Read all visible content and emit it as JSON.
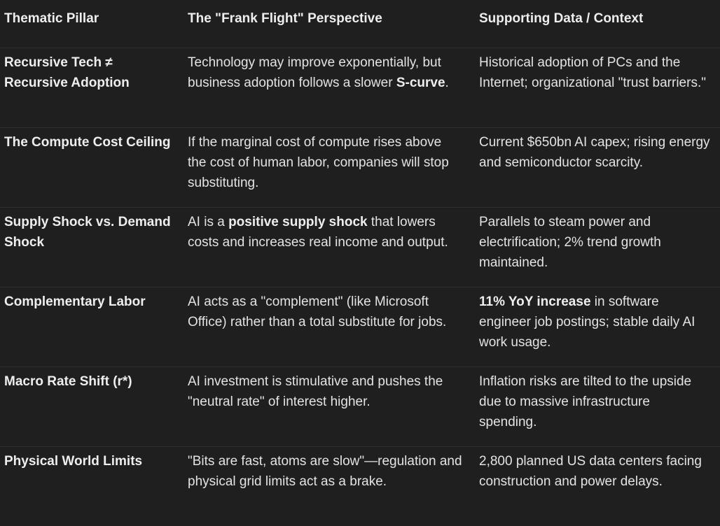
{
  "table": {
    "headers": [
      "Thematic Pillar",
      "The \"Frank Flight\" Perspective",
      "Supporting Data / Context"
    ],
    "rows": [
      {
        "pillar": "Recursive Tech ≠ Recursive Adoption",
        "perspective": [
          "Technology may improve exponentially, but business adoption follows a slower ",
          {
            "b": "S-curve"
          },
          "."
        ],
        "data": [
          "Historical adoption of PCs and the Internet; organizational \"trust barriers.\""
        ]
      },
      {
        "pillar": "The Compute Cost Ceiling",
        "perspective": [
          "If the marginal cost of compute rises above the cost of human labor, companies will stop substituting."
        ],
        "data": [
          "Current $650bn AI capex; rising energy and semiconductor scarcity."
        ]
      },
      {
        "pillar": "Supply Shock vs. Demand Shock",
        "perspective": [
          "AI is a ",
          {
            "b": "positive supply shock"
          },
          " that lowers costs and increases real income and output."
        ],
        "data": [
          "Parallels to steam power and electrification; 2% trend growth maintained."
        ]
      },
      {
        "pillar": "Complementary Labor",
        "perspective": [
          "AI acts as a \"complement\" (like Microsoft Office) rather than a total substitute for jobs."
        ],
        "data": [
          {
            "b": "11% YoY increase"
          },
          " in software engineer job postings; stable daily AI work usage."
        ]
      },
      {
        "pillar": "Macro Rate Shift (r*)",
        "perspective": [
          "AI investment is stimulative and pushes the \"neutral rate\" of interest higher."
        ],
        "data": [
          "Inflation risks are tilted to the upside due to massive infrastructure spending."
        ]
      },
      {
        "pillar": "Physical World Limits",
        "perspective": [
          "\"Bits are fast, atoms are slow\"—regulation and physical grid limits act as a brake."
        ],
        "data": [
          "2,800 planned US data centers facing construction and power delays."
        ]
      }
    ]
  }
}
